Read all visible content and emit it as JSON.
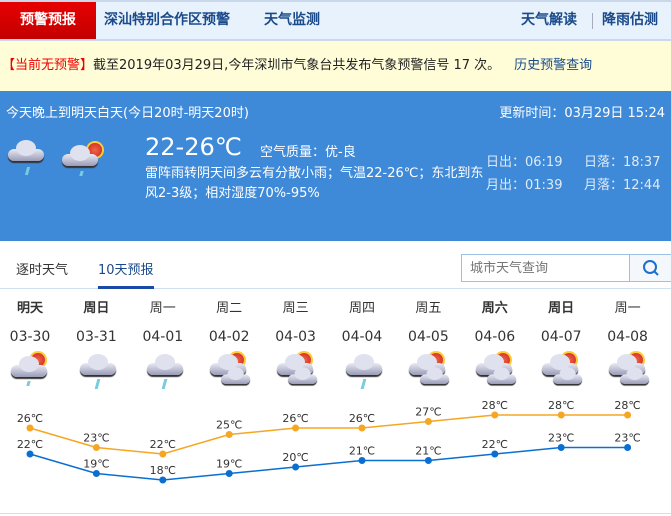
{
  "nav": {
    "items": [
      "预警预报",
      "深汕特别合作区预警",
      "天气监测"
    ],
    "right": [
      "天气解读",
      "降雨估测"
    ]
  },
  "alert": {
    "status": "【当前无预警】",
    "text": "截至2019年03月29日,今年深圳市气象台共发布气象预警信号 17 次。",
    "history_link": "历史预警查询"
  },
  "current": {
    "period": "今天晚上到明天白天(今日20时-明天20时)",
    "updated": "更新时间：03月29日 15:24",
    "temp": "22-26℃",
    "aq_label": "空气质量：",
    "aq_value": "优-良",
    "desc": "雷阵雨转阴天间多云有分散小雨；气温22-26℃；东北到东风2-3级；相对湿度70%-95%",
    "sunrise": "日出：06:19",
    "sunset": "日落：18:37",
    "moonrise": "月出：01:39",
    "moonset": "月落：12:44",
    "icons": [
      "thundershower-icon",
      "cloudy-light-rain-icon"
    ]
  },
  "tabs": [
    "逐时天气",
    "10天预报"
  ],
  "search": {
    "placeholder": "城市天气查询"
  },
  "forecast": [
    {
      "day": "明天",
      "date": "03-30",
      "icon": "sun-cloud-rain",
      "bold": true
    },
    {
      "day": "周日",
      "date": "03-31",
      "icon": "rain",
      "bold": true
    },
    {
      "day": "周一",
      "date": "04-01",
      "icon": "rain",
      "bold": false
    },
    {
      "day": "周二",
      "date": "04-02",
      "icon": "partly-cloudy",
      "bold": false
    },
    {
      "day": "周三",
      "date": "04-03",
      "icon": "partly-cloudy",
      "bold": false
    },
    {
      "day": "周四",
      "date": "04-04",
      "icon": "rain",
      "bold": false
    },
    {
      "day": "周五",
      "date": "04-05",
      "icon": "partly-cloudy",
      "bold": false
    },
    {
      "day": "周六",
      "date": "04-06",
      "icon": "partly-cloudy",
      "bold": true
    },
    {
      "day": "周日",
      "date": "04-07",
      "icon": "partly-cloudy",
      "bold": true
    },
    {
      "day": "周一",
      "date": "04-08",
      "icon": "partly-cloudy",
      "bold": false
    }
  ],
  "chart_data": {
    "type": "line",
    "categories": [
      "03-30",
      "03-31",
      "04-01",
      "04-02",
      "04-03",
      "04-04",
      "04-05",
      "04-06",
      "04-07",
      "04-08"
    ],
    "unit": "℃",
    "series": [
      {
        "values": [
          26,
          23,
          22,
          25,
          26,
          26,
          27,
          28,
          28,
          28
        ],
        "color": "#f5a623"
      },
      {
        "values": [
          22,
          19,
          18,
          19,
          20,
          21,
          21,
          22,
          23,
          23
        ],
        "color": "#0a6fd0"
      }
    ]
  }
}
